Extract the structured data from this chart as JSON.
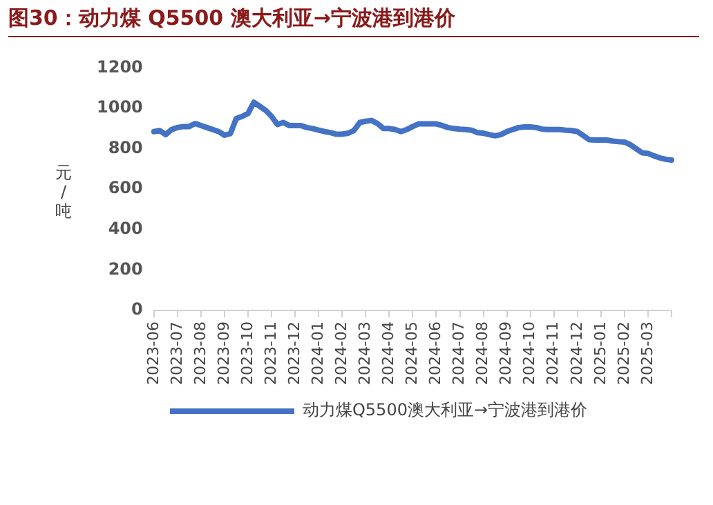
{
  "chart_data": {
    "type": "line",
    "title": "图30：动力煤 Q5500 澳大利亚→宁波港到港价",
    "ylabel": "元/吨",
    "categories": [
      "2023-06",
      null,
      null,
      null,
      "2023-07",
      null,
      null,
      null,
      "2023-08",
      null,
      null,
      null,
      "2023-09",
      null,
      null,
      null,
      "2023-10",
      null,
      null,
      null,
      "2023-11",
      null,
      null,
      null,
      "2023-12",
      null,
      null,
      null,
      "2024-01",
      null,
      null,
      null,
      "2024-02",
      null,
      null,
      null,
      "2024-03",
      null,
      null,
      null,
      "2024-04",
      null,
      null,
      null,
      "2024-05",
      null,
      null,
      null,
      "2024-06",
      null,
      null,
      null,
      "2024-07",
      null,
      null,
      null,
      "2024-08",
      null,
      null,
      null,
      "2024-09",
      null,
      null,
      null,
      "2024-10",
      null,
      null,
      null,
      "2024-11",
      null,
      null,
      null,
      "2024-12",
      null,
      null,
      null,
      "2025-01",
      null,
      null,
      null,
      "2025-02",
      null,
      null,
      null,
      "2025-03",
      null,
      null,
      null,
      null
    ],
    "series": [
      {
        "name": "动力煤Q5500澳大利亚→宁波港到港价",
        "color": "#4472c4",
        "values": [
          885,
          890,
          870,
          895,
          905,
          910,
          910,
          925,
          915,
          905,
          895,
          885,
          867,
          875,
          950,
          960,
          975,
          1030,
          1010,
          990,
          960,
          920,
          930,
          915,
          915,
          915,
          905,
          900,
          892,
          885,
          880,
          872,
          872,
          877,
          890,
          930,
          936,
          940,
          925,
          900,
          900,
          895,
          885,
          895,
          910,
          923,
          923,
          923,
          923,
          915,
          905,
          900,
          897,
          895,
          892,
          880,
          877,
          870,
          864,
          870,
          885,
          895,
          905,
          908,
          908,
          905,
          897,
          895,
          895,
          895,
          892,
          890,
          885,
          865,
          845,
          843,
          843,
          843,
          838,
          835,
          833,
          820,
          800,
          780,
          777,
          765,
          755,
          748,
          744
        ]
      }
    ],
    "ylim": [
      0,
      1200
    ],
    "yticks": [
      0,
      200,
      400,
      600,
      800,
      1000,
      1200
    ],
    "grid": false,
    "legend": "bottom",
    "marker": "none",
    "line_style": "solid"
  }
}
